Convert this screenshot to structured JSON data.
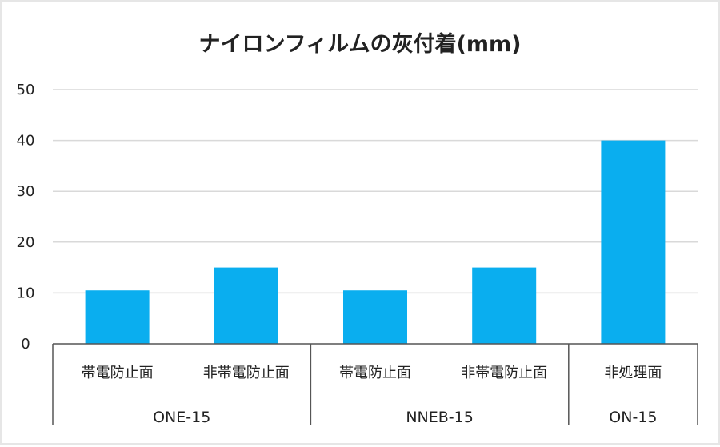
{
  "chart_data": {
    "type": "bar",
    "title": "ナイロンフィルムの灰付着(mm)",
    "xlabel": "",
    "ylabel": "",
    "ylim": [
      0,
      50
    ],
    "yticks": [
      0,
      10,
      20,
      30,
      40,
      50
    ],
    "grid": true,
    "categories": [
      "帯電防止面",
      "非帯電防止面",
      "帯電防止面",
      "非帯電防止面",
      "非処理面"
    ],
    "groups": [
      {
        "label": "ONE-15",
        "categories": [
          0,
          1
        ]
      },
      {
        "label": "NNEB-15",
        "categories": [
          2,
          3
        ]
      },
      {
        "label": "ON-15",
        "categories": [
          4
        ]
      }
    ],
    "values": [
      10.5,
      15,
      10.5,
      15,
      40
    ],
    "colors": {
      "bar": "#0aaeef",
      "grid": "#d9d9d9",
      "axis": "#555555"
    }
  }
}
